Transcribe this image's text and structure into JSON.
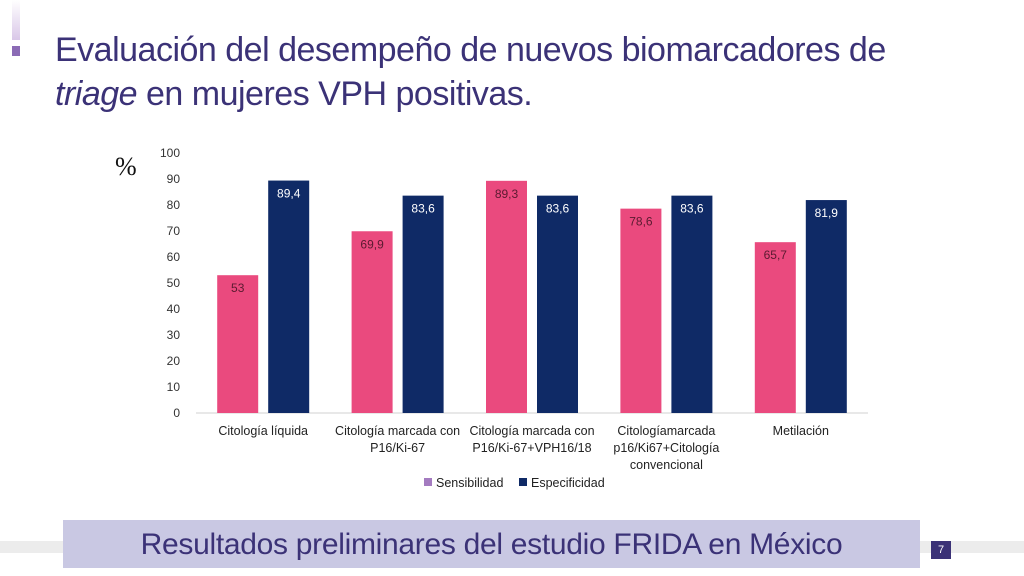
{
  "slide": {
    "title_main": "Evaluación del desempeño de nuevos biomarcadores de",
    "title_italic": "triage",
    "title_rest": " en mujeres VPH positivas.",
    "footer": "Resultados preliminares del estudio FRIDA en México",
    "page_number": "7",
    "axis_unit": "%"
  },
  "chart_data": {
    "type": "bar",
    "categories": [
      [
        "Citología líquida"
      ],
      [
        "Citología marcada con",
        "P16/Ki-67"
      ],
      [
        "Citología marcada con",
        "P16/Ki-67+VPH16/18"
      ],
      [
        "Citologíamarcada",
        "p16/Ki67+Citología",
        "convencional"
      ],
      [
        "Metilación"
      ]
    ],
    "series": [
      {
        "name": "Sensibilidad",
        "values": [
          53,
          69.9,
          89.3,
          78.6,
          65.7
        ],
        "labels": [
          "53",
          "69,9",
          "89,3",
          "78,6",
          "65,7"
        ],
        "color": "#ea4a7e",
        "label_color": "#5a1a30"
      },
      {
        "name": "Especificidad",
        "values": [
          89.4,
          83.6,
          83.6,
          83.6,
          81.9
        ],
        "labels": [
          "89,4",
          "83,6",
          "83,6",
          "83,6",
          "81,9"
        ],
        "color": "#0f2a66",
        "label_color": "#ffffff"
      }
    ],
    "ylim": [
      0,
      100
    ],
    "yticks": [
      0,
      10,
      20,
      30,
      40,
      50,
      60,
      70,
      80,
      90,
      100
    ],
    "legend_position": "bottom",
    "legend_swatch_colors": [
      "#a47bc0",
      "#0f2a66"
    ],
    "grid": false
  }
}
